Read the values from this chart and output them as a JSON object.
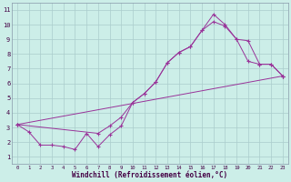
{
  "xlabel": "Windchill (Refroidissement éolien,°C)",
  "bg_color": "#cceee8",
  "grid_color": "#aacccc",
  "line_color": "#993399",
  "spine_color": "#8899aa",
  "tick_color": "#440044",
  "xlim": [
    -0.5,
    23.5
  ],
  "ylim": [
    0.5,
    11.5
  ],
  "xticks": [
    0,
    1,
    2,
    3,
    4,
    5,
    6,
    7,
    8,
    9,
    10,
    11,
    12,
    13,
    14,
    15,
    16,
    17,
    18,
    19,
    20,
    21,
    22,
    23
  ],
  "yticks": [
    1,
    2,
    3,
    4,
    5,
    6,
    7,
    8,
    9,
    10,
    11
  ],
  "line1_x": [
    0,
    1,
    2,
    3,
    4,
    5,
    6,
    7,
    8,
    9,
    10,
    11,
    12,
    13,
    14,
    15,
    16,
    17,
    18,
    19,
    20,
    21,
    22,
    23
  ],
  "line1_y": [
    3.2,
    2.7,
    1.8,
    1.8,
    1.7,
    1.5,
    2.6,
    1.7,
    2.5,
    3.1,
    4.7,
    5.3,
    6.1,
    7.4,
    8.1,
    8.5,
    9.6,
    10.7,
    10.0,
    9.0,
    7.5,
    7.3,
    7.3,
    6.5
  ],
  "line2_x": [
    0,
    7,
    8,
    9,
    10,
    11,
    12,
    13,
    14,
    15,
    16,
    17,
    18,
    19,
    20,
    21,
    22,
    23
  ],
  "line2_y": [
    3.2,
    2.6,
    3.1,
    3.7,
    4.7,
    5.3,
    6.1,
    7.4,
    8.1,
    8.5,
    9.6,
    10.2,
    9.9,
    9.0,
    8.9,
    7.3,
    7.3,
    6.5
  ],
  "line3_x": [
    0,
    23
  ],
  "line3_y": [
    3.2,
    6.5
  ]
}
